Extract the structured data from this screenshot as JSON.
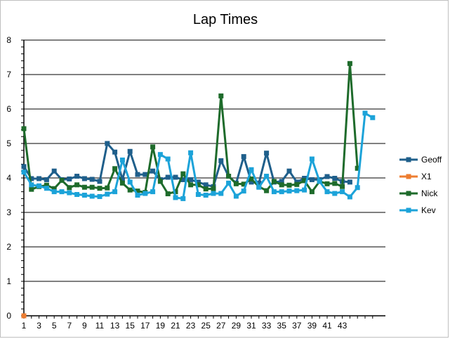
{
  "chart_data": {
    "type": "line",
    "title": "Lap Times",
    "xlabel": "",
    "ylabel": "",
    "ylim": [
      0,
      8
    ],
    "yticks": [
      0,
      1,
      2,
      3,
      4,
      5,
      6,
      7,
      8
    ],
    "xlim": [
      1,
      47
    ],
    "xticks": [
      1,
      3,
      5,
      7,
      9,
      11,
      13,
      15,
      17,
      19,
      21,
      23,
      25,
      27,
      29,
      31,
      33,
      35,
      37,
      39,
      41,
      43
    ],
    "grid": "horizontal",
    "legend_position": "right",
    "series": [
      {
        "name": "Geoff",
        "color": "#1f5f8b",
        "x": [
          1,
          2,
          3,
          4,
          5,
          6,
          7,
          8,
          9,
          10,
          11,
          12,
          13,
          14,
          15,
          16,
          17,
          18,
          19,
          20,
          21,
          22,
          23,
          24,
          25,
          26,
          27,
          28,
          29,
          30,
          31,
          32,
          33,
          34,
          35,
          36,
          37,
          38,
          39,
          40,
          41,
          42,
          43,
          44
        ],
        "values": [
          4.33,
          3.98,
          3.98,
          3.95,
          4.2,
          3.95,
          3.97,
          4.05,
          3.98,
          3.96,
          3.9,
          5.0,
          4.75,
          3.95,
          4.77,
          4.1,
          4.1,
          4.2,
          3.95,
          4.02,
          4.02,
          3.95,
          3.95,
          3.88,
          3.8,
          3.75,
          4.5,
          4.05,
          3.85,
          4.62,
          3.88,
          3.85,
          4.72,
          3.88,
          3.9,
          4.2,
          3.88,
          3.99,
          3.95,
          3.95,
          4.04,
          3.99,
          3.9,
          3.88
        ]
      },
      {
        "name": "X1",
        "color": "#ed7d31",
        "x": [
          1
        ],
        "values": [
          0
        ]
      },
      {
        "name": "Nick",
        "color": "#1e6b2b",
        "x": [
          1,
          2,
          3,
          4,
          5,
          6,
          7,
          8,
          9,
          10,
          11,
          12,
          13,
          14,
          15,
          16,
          17,
          18,
          19,
          20,
          21,
          22,
          23,
          24,
          25,
          26,
          27,
          28,
          29,
          30,
          31,
          32,
          33,
          34,
          35,
          36,
          37,
          38,
          39,
          40,
          41,
          42,
          43,
          44,
          45
        ],
        "values": [
          5.43,
          3.67,
          3.75,
          3.79,
          3.69,
          3.93,
          3.72,
          3.8,
          3.73,
          3.73,
          3.7,
          3.71,
          4.27,
          3.85,
          3.65,
          3.62,
          3.58,
          4.9,
          3.9,
          3.54,
          3.6,
          4.12,
          3.8,
          3.8,
          3.68,
          3.69,
          6.38,
          4.05,
          3.83,
          3.82,
          3.97,
          3.75,
          3.63,
          3.9,
          3.8,
          3.79,
          3.81,
          3.92,
          3.6,
          3.9,
          3.83,
          3.84,
          3.75,
          7.32,
          4.28
        ]
      },
      {
        "name": "Kev",
        "color": "#1ca3d9",
        "x": [
          1,
          2,
          3,
          4,
          5,
          6,
          7,
          8,
          9,
          10,
          11,
          12,
          13,
          14,
          15,
          16,
          17,
          18,
          19,
          20,
          21,
          22,
          23,
          24,
          25,
          26,
          27,
          28,
          29,
          30,
          31,
          32,
          33,
          34,
          35,
          36,
          37,
          38,
          39,
          40,
          41,
          42,
          43,
          44,
          45,
          46,
          47
        ],
        "values": [
          4.17,
          3.8,
          3.77,
          3.7,
          3.6,
          3.6,
          3.57,
          3.52,
          3.5,
          3.47,
          3.46,
          3.53,
          3.6,
          4.52,
          3.88,
          3.5,
          3.55,
          3.6,
          4.68,
          4.55,
          3.43,
          3.4,
          4.73,
          3.52,
          3.5,
          3.55,
          3.55,
          3.85,
          3.47,
          3.62,
          4.24,
          3.73,
          4.05,
          3.6,
          3.6,
          3.62,
          3.63,
          3.65,
          4.55,
          3.9,
          3.6,
          3.55,
          3.6,
          3.45,
          3.72,
          5.88,
          5.75
        ]
      }
    ]
  }
}
